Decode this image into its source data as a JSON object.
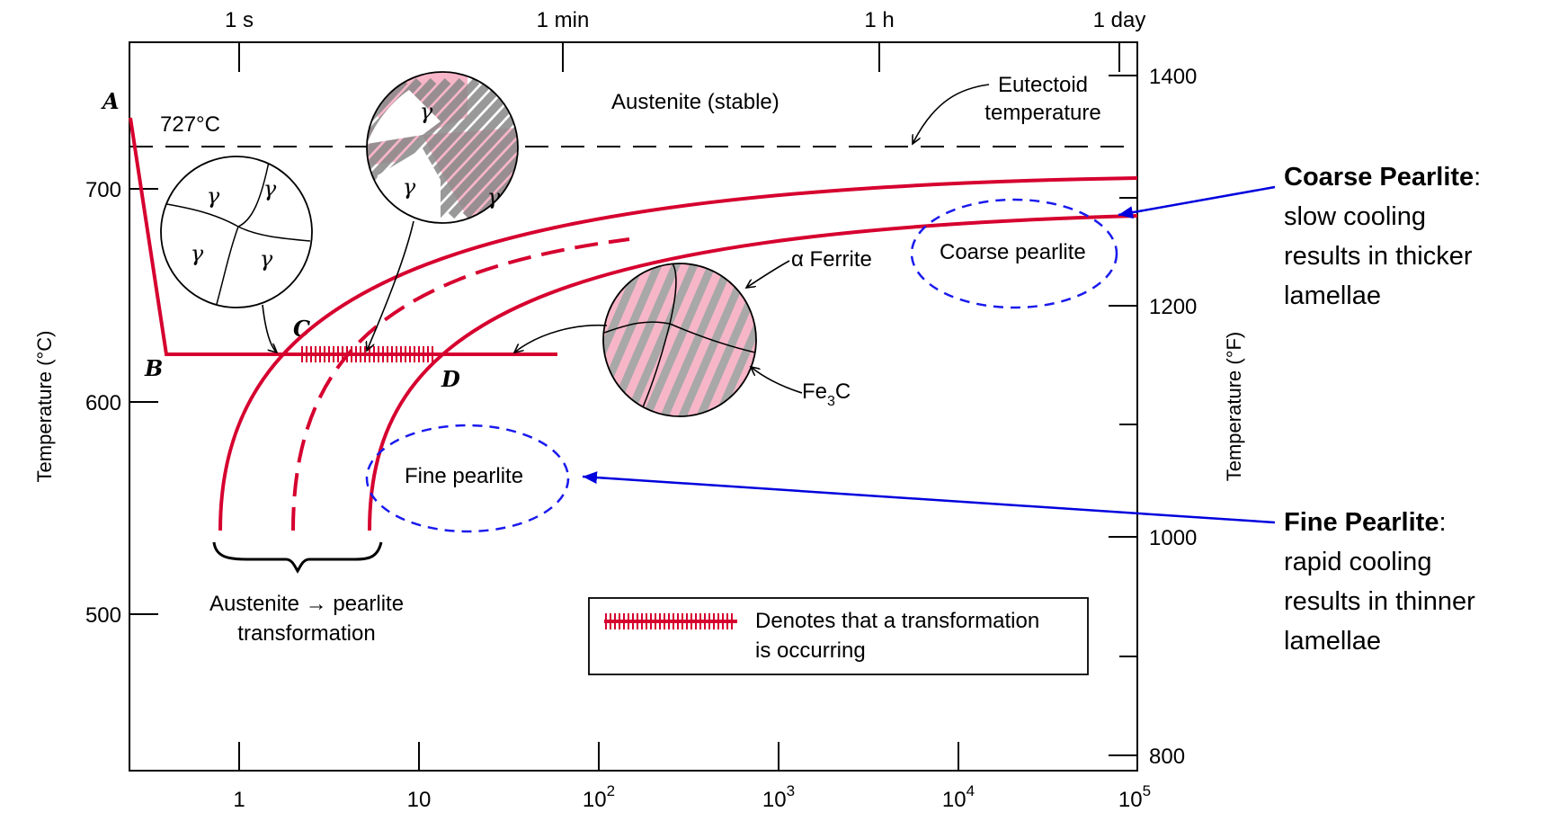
{
  "diagram": {
    "type": "TTT isothermal transformation diagram",
    "colors": {
      "curve": "#d6002f",
      "arrow": "#0000dd",
      "ellipse": "#1a1aee",
      "pink": "#f7b6c8",
      "grey": "#c9c9c9"
    },
    "top_axis": {
      "ticks": [
        "1 s",
        "1 min",
        "1 h",
        "1 day"
      ]
    },
    "bottom_axis": {
      "ticks": [
        {
          "base": "1",
          "exp": ""
        },
        {
          "base": "10",
          "exp": ""
        },
        {
          "base": "10",
          "exp": "2"
        },
        {
          "base": "10",
          "exp": "3"
        },
        {
          "base": "10",
          "exp": "4"
        },
        {
          "base": "10",
          "exp": "5"
        }
      ]
    },
    "left_axis": {
      "label": "Temperature (°C)",
      "ticks": [
        "700",
        "600",
        "500"
      ]
    },
    "right_axis": {
      "label": "Temperature (°F)",
      "ticks": [
        "1400",
        "1200",
        "1000",
        "800"
      ]
    },
    "labels": {
      "point_a": "A",
      "point_b": "B",
      "point_c": "C",
      "point_d": "D",
      "eutectoid_temp": "727°C",
      "austenite_stable": "Austenite (stable)",
      "eutectoid_line1": "Eutectoid",
      "eutectoid_line2": "temperature",
      "coarse_pearlite": "Coarse pearlite",
      "fine_pearlite": "Fine pearlite",
      "alpha_ferrite": "α Ferrite",
      "fe3c_base": "Fe",
      "fe3c_sub": "3",
      "fe3c_end": "C",
      "transformation_line1": "Austenite → pearlite",
      "transformation_line2": "transformation",
      "legend_line1": "Denotes that a transformation",
      "legend_line2": "is occurring",
      "gamma": "γ"
    },
    "annotations": {
      "coarse": {
        "title": "Coarse Pearlite",
        "colon": ":",
        "lines": [
          "slow cooling",
          "results in thicker",
          "lamellae"
        ]
      },
      "fine": {
        "title": "Fine Pearlite",
        "colon": ":",
        "lines": [
          "rapid cooling",
          "results in thinner",
          "lamellae"
        ]
      }
    }
  }
}
